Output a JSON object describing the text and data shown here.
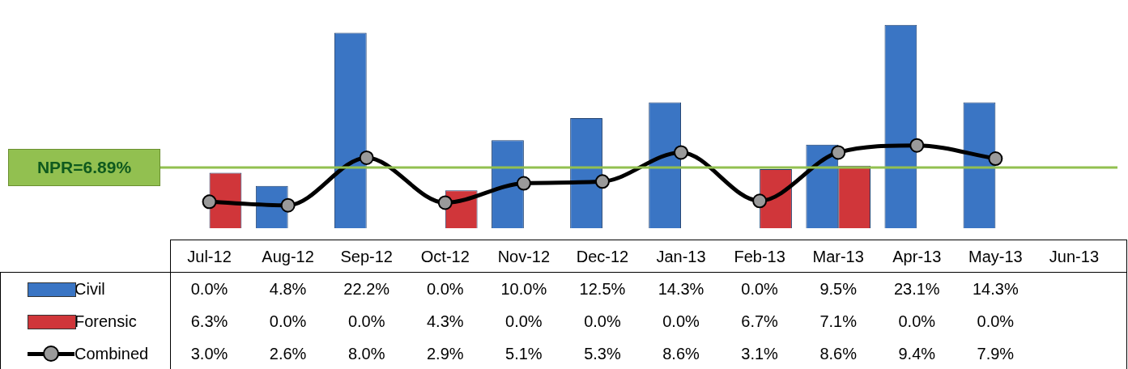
{
  "chart_data": {
    "type": "bar",
    "categories": [
      "Jul-12",
      "Aug-12",
      "Sep-12",
      "Oct-12",
      "Nov-12",
      "Dec-12",
      "Jan-13",
      "Feb-13",
      "Mar-13",
      "Apr-13",
      "May-13",
      "Jun-13"
    ],
    "legend": "bottom left",
    "series": [
      {
        "name": "Civil",
        "color": "#3a75c4",
        "values": [
          0.0,
          4.8,
          22.2,
          0.0,
          10.0,
          12.5,
          14.3,
          0.0,
          9.5,
          23.1,
          14.3,
          null
        ],
        "value_labels": [
          "0.0%",
          "4.8%",
          "22.2%",
          "0.0%",
          "10.0%",
          "12.5%",
          "14.3%",
          "0.0%",
          "9.5%",
          "23.1%",
          "14.3%",
          null
        ]
      },
      {
        "name": "Forensic",
        "color": "#d0363a",
        "values": [
          6.3,
          0.0,
          0.0,
          4.3,
          0.0,
          0.0,
          0.0,
          6.7,
          7.1,
          0.0,
          0.0,
          null
        ],
        "value_labels": [
          "6.3%",
          "0.0%",
          "0.0%",
          "4.3%",
          "0.0%",
          "0.0%",
          "0.0%",
          "6.7%",
          "7.1%",
          "0.0%",
          "0.0%",
          null
        ]
      },
      {
        "name": "Combined",
        "type": "line",
        "color": "#000000",
        "values": [
          3.0,
          2.6,
          8.0,
          2.9,
          5.1,
          5.3,
          8.6,
          3.1,
          8.6,
          9.4,
          7.9,
          null
        ],
        "value_labels": [
          "3.0%",
          "2.6%",
          "8.0%",
          "2.9%",
          "5.1%",
          "5.3%",
          "8.6%",
          "3.1%",
          "8.6%",
          "9.4%",
          "7.9%",
          null
        ]
      }
    ],
    "marker": "circle",
    "ref_lines": [
      {
        "axis": "y",
        "value": 6.89,
        "label": "NPR=6.89%",
        "color": "#92c050"
      }
    ]
  }
}
